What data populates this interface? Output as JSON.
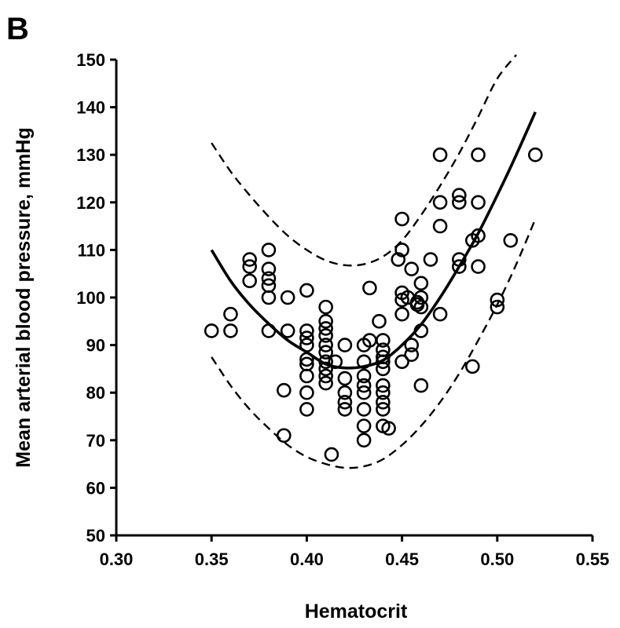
{
  "panel_label": "B",
  "chart_data": {
    "type": "scatter",
    "title": "",
    "xlabel": "Hematocrit",
    "ylabel": "Mean arterial blood pressure, mmHg",
    "xlim": [
      0.3,
      0.55
    ],
    "ylim": [
      50,
      150
    ],
    "xticks": [
      "0.30",
      "0.35",
      "0.40",
      "0.45",
      "0.50",
      "0.55"
    ],
    "yticks": [
      "50",
      "60",
      "70",
      "80",
      "90",
      "100",
      "110",
      "120",
      "130",
      "140",
      "150"
    ],
    "grid": false,
    "legend": "none",
    "series": [
      {
        "role": "observations",
        "marker": "open-circle",
        "points": [
          [
            0.35,
            93
          ],
          [
            0.36,
            96.5
          ],
          [
            0.36,
            93
          ],
          [
            0.37,
            108
          ],
          [
            0.37,
            106.5
          ],
          [
            0.37,
            103.5
          ],
          [
            0.38,
            110
          ],
          [
            0.38,
            106
          ],
          [
            0.38,
            104
          ],
          [
            0.38,
            102.5
          ],
          [
            0.38,
            100
          ],
          [
            0.38,
            93
          ],
          [
            0.388,
            80.5
          ],
          [
            0.388,
            71
          ],
          [
            0.39,
            100
          ],
          [
            0.39,
            93
          ],
          [
            0.4,
            101.5
          ],
          [
            0.4,
            93
          ],
          [
            0.4,
            91.5
          ],
          [
            0.4,
            90
          ],
          [
            0.4,
            87
          ],
          [
            0.4,
            86
          ],
          [
            0.4,
            83.5
          ],
          [
            0.4,
            80
          ],
          [
            0.4,
            76.5
          ],
          [
            0.41,
            98
          ],
          [
            0.41,
            95
          ],
          [
            0.41,
            93.5
          ],
          [
            0.41,
            92
          ],
          [
            0.41,
            90
          ],
          [
            0.41,
            88.5
          ],
          [
            0.41,
            86.5
          ],
          [
            0.41,
            85
          ],
          [
            0.41,
            83.5
          ],
          [
            0.41,
            82
          ],
          [
            0.413,
            67
          ],
          [
            0.415,
            86.5
          ],
          [
            0.42,
            90
          ],
          [
            0.42,
            83
          ],
          [
            0.42,
            80
          ],
          [
            0.42,
            78
          ],
          [
            0.42,
            76.5
          ],
          [
            0.43,
            90
          ],
          [
            0.43,
            86.5
          ],
          [
            0.43,
            83.5
          ],
          [
            0.43,
            81.5
          ],
          [
            0.43,
            80
          ],
          [
            0.43,
            76.5
          ],
          [
            0.43,
            73
          ],
          [
            0.43,
            70
          ],
          [
            0.433,
            102
          ],
          [
            0.433,
            91
          ],
          [
            0.438,
            95
          ],
          [
            0.44,
            91
          ],
          [
            0.44,
            89
          ],
          [
            0.44,
            87.5
          ],
          [
            0.44,
            86.5
          ],
          [
            0.44,
            85
          ],
          [
            0.44,
            81.5
          ],
          [
            0.44,
            80
          ],
          [
            0.44,
            78
          ],
          [
            0.44,
            76.5
          ],
          [
            0.44,
            73
          ],
          [
            0.443,
            72.5
          ],
          [
            0.448,
            108
          ],
          [
            0.45,
            116.5
          ],
          [
            0.45,
            110
          ],
          [
            0.45,
            101
          ],
          [
            0.45,
            99.5
          ],
          [
            0.45,
            96.5
          ],
          [
            0.45,
            86.5
          ],
          [
            0.453,
            100
          ],
          [
            0.455,
            106
          ],
          [
            0.455,
            90
          ],
          [
            0.455,
            88
          ],
          [
            0.458,
            99
          ],
          [
            0.458,
            98.5
          ],
          [
            0.46,
            103
          ],
          [
            0.46,
            100
          ],
          [
            0.46,
            98
          ],
          [
            0.46,
            93
          ],
          [
            0.46,
            81.5
          ],
          [
            0.465,
            108
          ],
          [
            0.47,
            130
          ],
          [
            0.47,
            120
          ],
          [
            0.47,
            115
          ],
          [
            0.47,
            96.5
          ],
          [
            0.48,
            121.5
          ],
          [
            0.48,
            120
          ],
          [
            0.48,
            108
          ],
          [
            0.48,
            106.5
          ],
          [
            0.487,
            112
          ],
          [
            0.487,
            85.5
          ],
          [
            0.49,
            130
          ],
          [
            0.49,
            120
          ],
          [
            0.49,
            113
          ],
          [
            0.49,
            106.5
          ],
          [
            0.5,
            99.5
          ],
          [
            0.5,
            98
          ],
          [
            0.507,
            112
          ],
          [
            0.52,
            130
          ]
        ]
      },
      {
        "role": "fitted curve",
        "style": "solid",
        "x": [
          0.35,
          0.36,
          0.37,
          0.38,
          0.39,
          0.4,
          0.41,
          0.42,
          0.43,
          0.44,
          0.45,
          0.46,
          0.47,
          0.48,
          0.49,
          0.5,
          0.51,
          0.52
        ],
        "values": [
          110,
          103.5,
          98.5,
          94.5,
          91,
          88.5,
          86,
          85.2,
          85.5,
          86.8,
          90,
          94.3,
          100,
          106.5,
          113.5,
          121.5,
          130,
          139
        ]
      },
      {
        "role": "upper band",
        "style": "dashed",
        "x": [
          0.35,
          0.36,
          0.37,
          0.38,
          0.39,
          0.4,
          0.41,
          0.42,
          0.43,
          0.44,
          0.45,
          0.46,
          0.47,
          0.48,
          0.49,
          0.5,
          0.51
        ],
        "values": [
          132.5,
          126.5,
          121.5,
          117,
          113,
          110,
          107.8,
          106.8,
          107,
          108.6,
          112,
          117.3,
          123.5,
          130.3,
          138,
          146,
          151
        ]
      },
      {
        "role": "lower band",
        "style": "dashed",
        "x": [
          0.35,
          0.36,
          0.37,
          0.38,
          0.39,
          0.4,
          0.41,
          0.42,
          0.43,
          0.44,
          0.45,
          0.46,
          0.47,
          0.48,
          0.49,
          0.5,
          0.51,
          0.52
        ],
        "values": [
          87.5,
          81.5,
          76.5,
          72.5,
          69,
          66.5,
          65,
          64.2,
          64.5,
          66,
          69,
          73,
          78,
          84,
          91,
          98.5,
          107,
          116.5
        ]
      }
    ]
  }
}
